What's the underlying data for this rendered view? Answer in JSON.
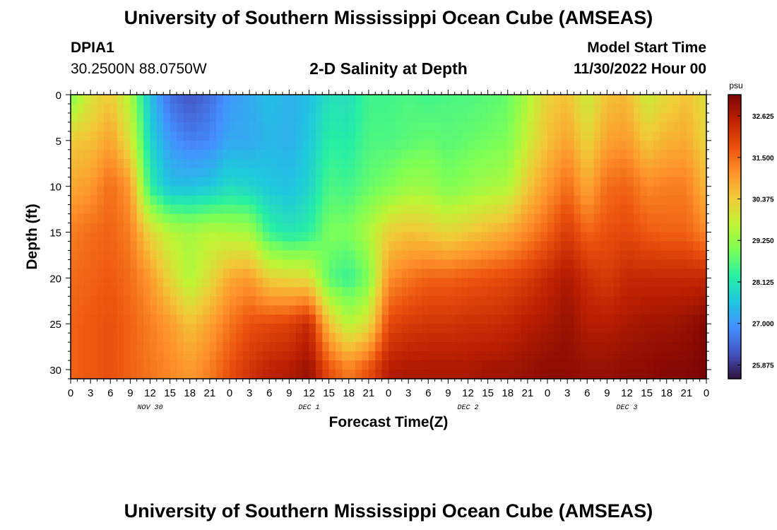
{
  "page_title": "University of Southern Mississippi Ocean Cube (AMSEAS)",
  "footer_title": "University of Southern Mississippi Ocean Cube (AMSEAS)",
  "station": {
    "id": "DPIA1",
    "coords": "30.2500N  88.0750W"
  },
  "model_start": {
    "label": "Model Start Time",
    "value": "11/30/2022 Hour 00"
  },
  "colors": {
    "colormap": [
      "#30123b",
      "#4454c4",
      "#4490fe",
      "#1fc8de",
      "#29efa2",
      "#7dff56",
      "#c1f334",
      "#f1ca3a",
      "#fe922a",
      "#ea4f0d",
      "#be2102",
      "#7a0403"
    ]
  },
  "chart_data": {
    "type": "heatmap",
    "title": "2-D Salinity at Depth",
    "xlabel": "Forecast Time(Z)",
    "ylabel": "Depth (ft)",
    "colorbar_unit": "psu",
    "colorbar_ticks": [
      "32.625",
      "31.500",
      "30.375",
      "29.250",
      "28.125",
      "27.000",
      "25.875"
    ],
    "crange": [
      25.5,
      33.2
    ],
    "xlim": [
      0,
      96
    ],
    "ylim": [
      31,
      0
    ],
    "x_tick_labels": [
      "0",
      "3",
      "6",
      "9",
      "12",
      "15",
      "18",
      "21",
      "0",
      "3",
      "6",
      "9",
      "12",
      "15",
      "18",
      "21",
      "0",
      "3",
      "6",
      "9",
      "12",
      "15",
      "18",
      "21",
      "0",
      "3",
      "6",
      "9",
      "12",
      "15",
      "18",
      "21",
      "0"
    ],
    "y_tick_labels": [
      "0",
      "5",
      "10",
      "15",
      "20",
      "25",
      "30"
    ],
    "day_labels": [
      "NOV 30",
      "DEC 1",
      "DEC 2",
      "DEC 3"
    ],
    "time_hours": [
      0,
      3,
      6,
      9,
      12,
      15,
      18,
      21,
      24,
      27,
      30,
      33,
      36,
      39,
      42,
      45,
      48,
      51,
      54,
      57,
      60,
      63,
      66,
      69,
      72,
      75,
      78,
      81,
      84,
      87,
      90,
      93,
      96
    ],
    "depth_ft": [
      0,
      5,
      10,
      15,
      20,
      25,
      30,
      31
    ],
    "values": [
      [
        29.0,
        30.0,
        30.4,
        29.5,
        27.5,
        26.5,
        26.2,
        26.5,
        27.0,
        27.2,
        27.5,
        27.3,
        27.5,
        28.0,
        28.0,
        28.5,
        28.5,
        28.6,
        28.5,
        28.6,
        28.6,
        28.7,
        28.8,
        29.5,
        30.3,
        30.5,
        29.8,
        30.5,
        30.6,
        29.8,
        30.2,
        30.5,
        30.0
      ],
      [
        30.4,
        30.5,
        30.9,
        30.0,
        27.8,
        27.0,
        26.7,
        26.8,
        27.2,
        27.2,
        27.4,
        27.3,
        27.6,
        28.3,
        28.2,
        28.6,
        28.6,
        28.7,
        28.8,
        28.7,
        28.8,
        28.9,
        29.0,
        29.8,
        30.5,
        30.9,
        30.2,
        30.9,
        31.0,
        30.4,
        30.7,
        30.8,
        30.2
      ],
      [
        30.8,
        31.0,
        31.5,
        31.0,
        28.3,
        27.5,
        27.5,
        27.6,
        27.9,
        27.8,
        27.6,
        27.5,
        27.8,
        28.6,
        28.5,
        28.8,
        29.0,
        29.3,
        29.3,
        29.0,
        29.2,
        29.4,
        29.5,
        30.4,
        31.0,
        31.5,
        30.8,
        31.5,
        31.6,
        31.2,
        31.3,
        31.3,
        30.6
      ],
      [
        31.3,
        31.5,
        31.6,
        31.3,
        30.2,
        29.6,
        29.4,
        29.6,
        29.5,
        29.4,
        28.4,
        28.1,
        28.3,
        29.0,
        29.0,
        29.5,
        30.3,
        30.5,
        30.4,
        30.2,
        30.4,
        30.6,
        30.8,
        31.2,
        31.6,
        32.1,
        31.6,
        31.8,
        31.9,
        31.7,
        31.6,
        31.6,
        31.2
      ],
      [
        31.5,
        31.6,
        31.7,
        31.5,
        31.0,
        30.2,
        29.5,
        30.1,
        30.8,
        31.0,
        30.3,
        30.2,
        30.1,
        28.7,
        28.4,
        29.0,
        31.1,
        31.4,
        31.6,
        31.6,
        31.7,
        31.8,
        31.9,
        32.1,
        32.4,
        32.7,
        32.3,
        32.1,
        32.4,
        32.4,
        32.4,
        32.4,
        32.4
      ],
      [
        31.6,
        31.7,
        31.8,
        31.6,
        31.3,
        31.0,
        30.5,
        30.9,
        31.4,
        31.8,
        31.9,
        32.0,
        32.4,
        30.5,
        29.6,
        30.1,
        31.9,
        32.1,
        32.2,
        32.2,
        32.3,
        32.3,
        32.4,
        32.6,
        32.7,
        32.9,
        32.6,
        32.6,
        32.7,
        32.8,
        32.8,
        32.9,
        33.1
      ],
      [
        31.6,
        31.7,
        31.8,
        31.6,
        31.4,
        31.2,
        31.0,
        31.3,
        31.8,
        32.2,
        32.5,
        32.6,
        32.9,
        31.8,
        31.3,
        31.8,
        32.6,
        32.7,
        32.7,
        32.7,
        32.7,
        32.8,
        32.8,
        32.9,
        33.0,
        33.0,
        32.9,
        32.9,
        33.0,
        33.0,
        33.1,
        33.1,
        33.2
      ],
      [
        31.6,
        31.7,
        31.8,
        31.6,
        31.4,
        31.2,
        31.0,
        31.3,
        31.8,
        32.2,
        32.5,
        32.6,
        32.9,
        31.8,
        31.3,
        31.8,
        32.6,
        32.7,
        32.7,
        32.7,
        32.7,
        32.8,
        32.8,
        32.9,
        33.0,
        33.0,
        32.9,
        32.9,
        33.0,
        33.0,
        33.1,
        33.1,
        33.2
      ]
    ]
  }
}
